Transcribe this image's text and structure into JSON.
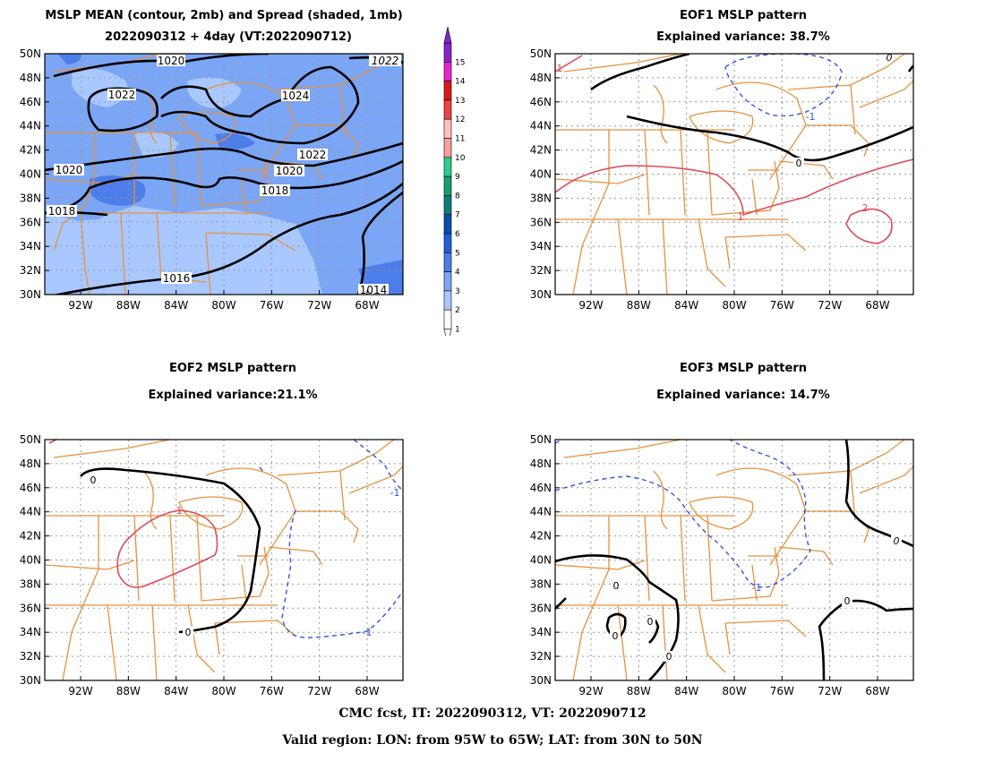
{
  "colors": {
    "state_lines": "#e8913c",
    "contour": "#000000",
    "positive": "#e04a55",
    "negative": "#3355dd",
    "grid": "#999999"
  },
  "axes": {
    "lat_ticks": [
      "50N",
      "48N",
      "46N",
      "44N",
      "42N",
      "40N",
      "38N",
      "36N",
      "34N",
      "32N",
      "30N"
    ],
    "lon_ticks": [
      "92W",
      "88W",
      "84W",
      "80W",
      "76W",
      "72W",
      "68W"
    ]
  },
  "panels": {
    "mean": {
      "title_line1": "MSLP MEAN (contour, 2mb) and Spread (shaded, 1mb)",
      "title_line2": "2022090312 + 4day (VT:2022090712)",
      "contour_labels": [
        "1020",
        "1022",
        "1024",
        "1022",
        "1022",
        "1020",
        "1020",
        "1018",
        "1018",
        "1016",
        "1014"
      ]
    },
    "eof1": {
      "title_line1": "EOF1 MSLP pattern",
      "title_line2": "Explained variance: 38.7%",
      "contour_labels": [
        "0",
        "0",
        "1",
        "1",
        "-1",
        "2"
      ]
    },
    "eof2": {
      "title_line1": "EOF2 MSLP pattern",
      "title_line2": "Explained variance:21.1%",
      "contour_labels": [
        "0",
        "0",
        "1",
        "-1",
        "-1"
      ]
    },
    "eof3": {
      "title_line1": "EOF3 MSLP pattern",
      "title_line2": "Explained variance: 14.7%",
      "contour_labels": [
        "0",
        "0",
        "0",
        "0",
        "0",
        "-1",
        "0"
      ]
    }
  },
  "colorbar": {
    "labels": [
      "1",
      "2",
      "3",
      "4",
      "5",
      "6",
      "7",
      "8",
      "9",
      "10",
      "11",
      "12",
      "13",
      "14",
      "15"
    ],
    "colors": [
      "#ffffff",
      "#a8c8ff",
      "#7aa6f5",
      "#4d7de8",
      "#1f5ee0",
      "#0a4fb0",
      "#0d7c7c",
      "#17a06e",
      "#2ecf8a",
      "#ff9e9e",
      "#ffc0c0",
      "#f04040",
      "#e01818",
      "#ee22cc",
      "#8822cc"
    ]
  },
  "footer": {
    "line1": "CMC fcst, IT: 2022090312, VT: 2022090712",
    "line2": "Valid region: LON: from 95W to 65W; LAT: from 30N to 50N"
  }
}
